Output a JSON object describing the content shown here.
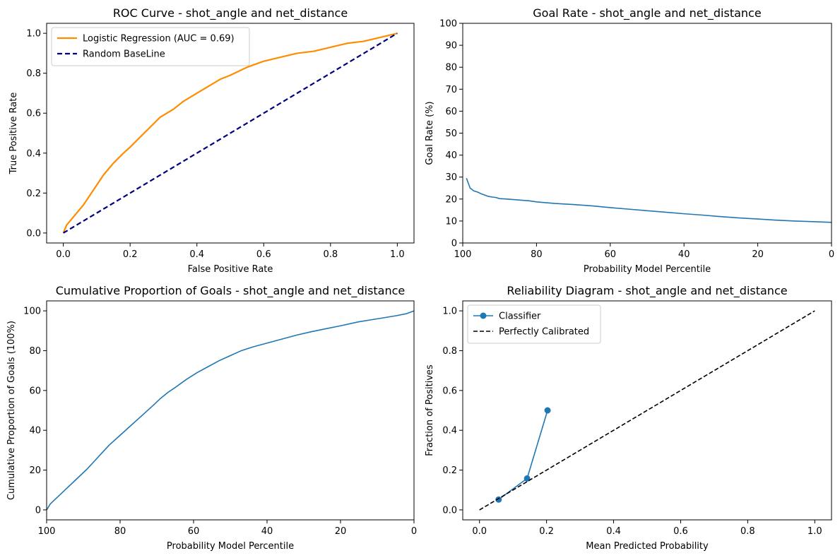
{
  "chart_data": [
    {
      "type": "line",
      "title": "ROC Curve - shot_angle and net_distance",
      "xlabel": "False Positive Rate",
      "ylabel": "True Positive Rate",
      "xlim": [
        -0.05,
        1.05
      ],
      "ylim": [
        -0.05,
        1.05
      ],
      "xticks": [
        0.0,
        0.2,
        0.4,
        0.6,
        0.8,
        1.0
      ],
      "yticks": [
        0.0,
        0.2,
        0.4,
        0.6,
        0.8,
        1.0
      ],
      "tick_format": "fixed1",
      "legend": {
        "placement": "upper left"
      },
      "series": [
        {
          "name": "Logistic Regression (AUC = 0.69)",
          "color": "#ff8c00",
          "style": "solid",
          "x": [
            0,
            0.01,
            0.02,
            0.04,
            0.06,
            0.08,
            0.1,
            0.12,
            0.15,
            0.18,
            0.2,
            0.23,
            0.26,
            0.29,
            0.3,
            0.33,
            0.36,
            0.4,
            0.43,
            0.47,
            0.5,
            0.55,
            0.6,
            0.65,
            0.7,
            0.75,
            0.8,
            0.85,
            0.9,
            0.95,
            1.0
          ],
          "y": [
            0,
            0.04,
            0.06,
            0.1,
            0.14,
            0.19,
            0.24,
            0.29,
            0.35,
            0.4,
            0.43,
            0.48,
            0.53,
            0.58,
            0.59,
            0.62,
            0.66,
            0.7,
            0.73,
            0.77,
            0.79,
            0.83,
            0.86,
            0.88,
            0.9,
            0.91,
            0.93,
            0.95,
            0.96,
            0.98,
            1.0
          ]
        },
        {
          "name": "Random BaseLine",
          "color": "#000080",
          "style": "dashed",
          "x": [
            0,
            1
          ],
          "y": [
            0,
            1
          ]
        }
      ]
    },
    {
      "type": "line",
      "title": "Goal Rate  - shot_angle and net_distance",
      "xlabel": "Probability Model Percentile",
      "ylabel": "Goal Rate (%)",
      "xlim": [
        100,
        0
      ],
      "ylim": [
        0,
        100
      ],
      "xticks": [
        100,
        80,
        60,
        40,
        20,
        0
      ],
      "yticks": [
        0,
        10,
        20,
        30,
        40,
        50,
        60,
        70,
        80,
        90,
        100
      ],
      "tick_format": "int",
      "series": [
        {
          "color": "#1f77b4",
          "style": "solid",
          "x": [
            99,
            98,
            97,
            96,
            95,
            94,
            93,
            92,
            91,
            90,
            88,
            85,
            82,
            80,
            75,
            70,
            65,
            60,
            55,
            50,
            45,
            40,
            35,
            30,
            25,
            20,
            15,
            10,
            5,
            0
          ],
          "y": [
            29.5,
            25,
            23.7,
            23.2,
            22.4,
            21.8,
            21.2,
            20.9,
            20.7,
            20.2,
            20.0,
            19.6,
            19.2,
            18.7,
            18.0,
            17.5,
            16.9,
            16.1,
            15.4,
            14.7,
            14.0,
            13.3,
            12.7,
            12.0,
            11.4,
            10.9,
            10.4,
            10.0,
            9.7,
            9.4
          ]
        }
      ]
    },
    {
      "type": "line",
      "title": "Cumulative Proportion of Goals  - shot_angle and net_distance",
      "xlabel": "Probability Model Percentile",
      "ylabel": "Cumulative Proportion of Goals (100%)",
      "xlim": [
        100,
        0
      ],
      "ylim": [
        -5,
        105
      ],
      "xticks": [
        100,
        80,
        60,
        40,
        20,
        0
      ],
      "yticks": [
        0,
        20,
        40,
        60,
        80,
        100
      ],
      "tick_format": "int",
      "series": [
        {
          "color": "#1f77b4",
          "style": "solid",
          "x": [
            100,
            99,
            97,
            95,
            93,
            91,
            89,
            87,
            85,
            83,
            80,
            77,
            74,
            71,
            69,
            67,
            65,
            62,
            59,
            56,
            53,
            50,
            47,
            44,
            40,
            36,
            32,
            28,
            24,
            20,
            15,
            10,
            5,
            2,
            0
          ],
          "y": [
            0,
            3,
            6.5,
            10,
            13.5,
            17,
            20.5,
            24.5,
            28.5,
            32.5,
            37.5,
            42.5,
            47.5,
            52.5,
            56,
            59,
            61.5,
            65.5,
            69,
            72,
            75,
            77.5,
            80,
            81.8,
            83.8,
            85.8,
            87.8,
            89.5,
            91,
            92.5,
            94.5,
            96,
            97.5,
            98.6,
            100
          ]
        }
      ]
    },
    {
      "type": "line",
      "title": "Reliability Diagram - shot_angle and net_distance",
      "xlabel": "Mean Predicted Probability",
      "ylabel": "Fraction of Positives",
      "xlim": [
        -0.05,
        1.05
      ],
      "ylim": [
        -0.05,
        1.05
      ],
      "xticks": [
        0.0,
        0.2,
        0.4,
        0.6,
        0.8,
        1.0
      ],
      "yticks": [
        0.0,
        0.2,
        0.4,
        0.6,
        0.8,
        1.0
      ],
      "tick_format": "fixed1",
      "legend": {
        "placement": "upper left"
      },
      "series": [
        {
          "name": " Classifier",
          "color": "#1f77b4",
          "style": "solid",
          "marker": "circle",
          "x": [
            0.057,
            0.142,
            0.203
          ],
          "y": [
            0.052,
            0.158,
            0.5
          ]
        },
        {
          "name": "Perfectly Calibrated",
          "color": "#000000",
          "style": "dashed",
          "x": [
            0,
            1
          ],
          "y": [
            0,
            1
          ]
        }
      ]
    }
  ]
}
